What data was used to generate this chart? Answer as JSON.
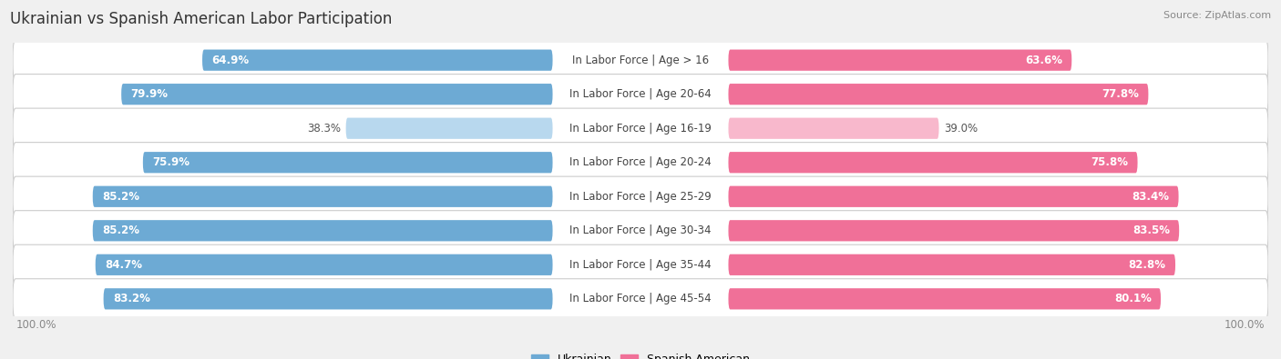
{
  "title": "Ukrainian vs Spanish American Labor Participation",
  "source": "Source: ZipAtlas.com",
  "categories": [
    "In Labor Force | Age > 16",
    "In Labor Force | Age 20-64",
    "In Labor Force | Age 16-19",
    "In Labor Force | Age 20-24",
    "In Labor Force | Age 25-29",
    "In Labor Force | Age 30-34",
    "In Labor Force | Age 35-44",
    "In Labor Force | Age 45-54"
  ],
  "ukrainian_values": [
    64.9,
    79.9,
    38.3,
    75.9,
    85.2,
    85.2,
    84.7,
    83.2
  ],
  "spanish_values": [
    63.6,
    77.8,
    39.0,
    75.8,
    83.4,
    83.5,
    82.8,
    80.1
  ],
  "ukrainian_color": "#6daad4",
  "ukrainian_color_light": "#b8d8ee",
  "spanish_color": "#f07098",
  "spanish_color_light": "#f8b8cc",
  "bar_height": 0.62,
  "max_value": 100.0,
  "row_bg_color": "#ffffff",
  "row_border_color": "#dddddd",
  "title_fontsize": 12,
  "label_fontsize": 8.5,
  "value_fontsize": 8.5,
  "legend_fontsize": 9,
  "footer_fontsize": 8.5,
  "bg_color": "#f0f0f0"
}
